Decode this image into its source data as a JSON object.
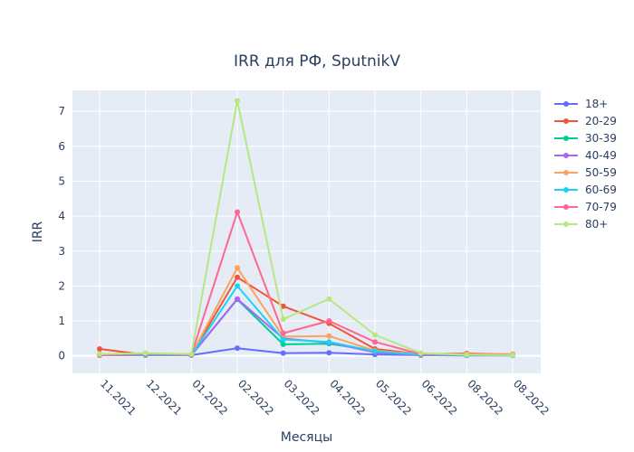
{
  "chart_data": {
    "type": "line",
    "title": "IRR для РФ, SputnikV",
    "xlabel": "Месяцы",
    "ylabel": "IRR",
    "ylim": [
      -0.5,
      7.6
    ],
    "yticks": [
      0,
      1,
      2,
      3,
      4,
      5,
      6,
      7
    ],
    "grid": true,
    "legend_position": "right",
    "categories": [
      "11.2021",
      "12.2021",
      "01.2022",
      "02.2022",
      "03.2022",
      "04.2022",
      "05.2022",
      "06.2022",
      "08.2022",
      "08.2022"
    ],
    "series": [
      {
        "name": "18+",
        "color": "#636efa",
        "values": [
          0.02,
          0.02,
          0.02,
          0.22,
          0.08,
          0.09,
          0.04,
          0.02,
          0.01,
          0.01
        ]
      },
      {
        "name": "20-29",
        "color": "#ef553b",
        "values": [
          0.2,
          0.03,
          0.03,
          2.25,
          1.42,
          0.93,
          0.2,
          0.05,
          0.07,
          0.04
        ]
      },
      {
        "name": "30-39",
        "color": "#00cc96",
        "values": [
          0.02,
          0.02,
          0.02,
          1.62,
          0.33,
          0.35,
          0.15,
          0.03,
          0.02,
          0.02
        ]
      },
      {
        "name": "40-49",
        "color": "#ab63fa",
        "values": [
          0.02,
          0.02,
          0.02,
          1.63,
          0.5,
          0.38,
          0.1,
          0.02,
          0.02,
          0.02
        ]
      },
      {
        "name": "50-59",
        "color": "#ffa15a",
        "values": [
          0.05,
          0.05,
          0.03,
          2.52,
          0.55,
          0.57,
          0.15,
          0.05,
          0.05,
          0.05
        ]
      },
      {
        "name": "60-69",
        "color": "#19d3f3",
        "values": [
          0.02,
          0.02,
          0.02,
          2.0,
          0.47,
          0.4,
          0.13,
          0.03,
          0.02,
          0.02
        ]
      },
      {
        "name": "70-79",
        "color": "#ff6692",
        "values": [
          0.02,
          0.05,
          0.03,
          4.12,
          0.65,
          1.0,
          0.4,
          0.05,
          0.03,
          0.03
        ]
      },
      {
        "name": "80+",
        "color": "#b6e880",
        "values": [
          0.05,
          0.08,
          0.05,
          7.3,
          1.05,
          1.63,
          0.6,
          0.08,
          0.03,
          0.02
        ]
      }
    ]
  }
}
